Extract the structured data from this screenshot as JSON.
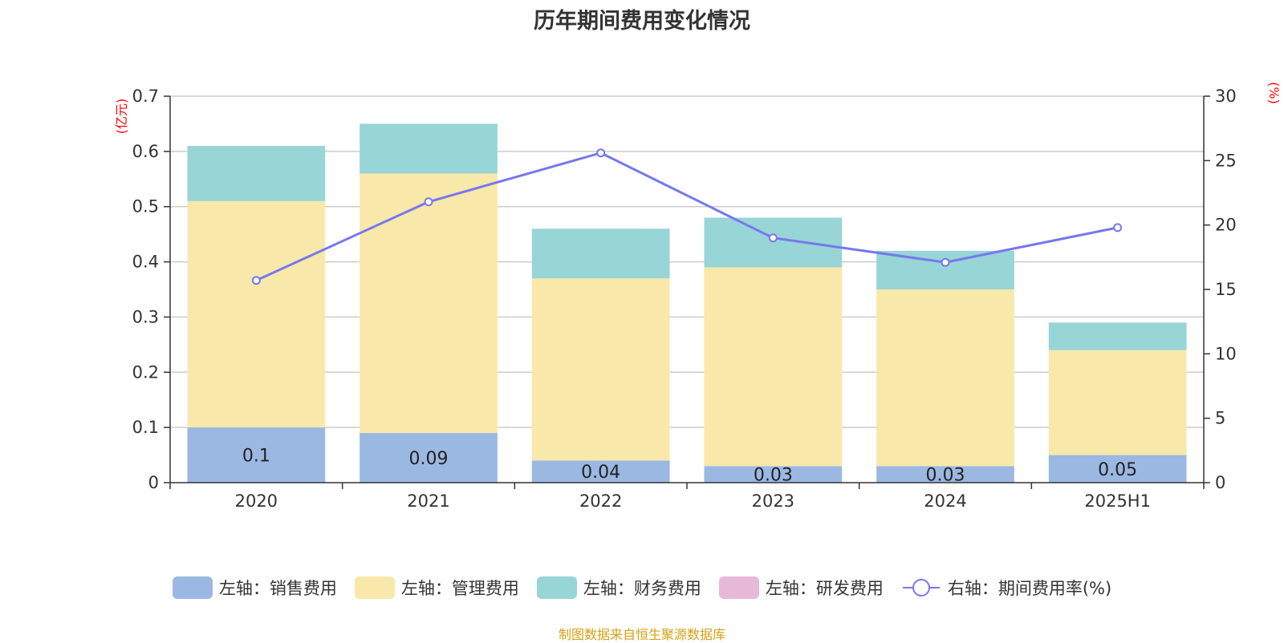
{
  "chart_data": {
    "type": "bar",
    "stacked": true,
    "title": "历年期间费用变化情况",
    "categories": [
      "2020",
      "2021",
      "2022",
      "2023",
      "2024",
      "2025H1"
    ],
    "left_axis": {
      "unit": "(亿元)",
      "ylim": [
        0,
        0.7
      ],
      "ticks": [
        "0",
        "0.1",
        "0.2",
        "0.3",
        "0.4",
        "0.5",
        "0.6",
        "0.7"
      ]
    },
    "right_axis": {
      "unit": "(%)",
      "ylim": [
        0,
        30
      ],
      "ticks": [
        "0",
        "5",
        "10",
        "15",
        "20",
        "25",
        "30"
      ]
    },
    "series": [
      {
        "name": "左轴：销售费用",
        "type": "bar",
        "color": "#9bb8e2",
        "values": [
          0.1,
          0.09,
          0.04,
          0.03,
          0.03,
          0.05
        ],
        "labels": [
          "0.1",
          "0.09",
          "0.04",
          "0.03",
          "0.03",
          "0.05"
        ]
      },
      {
        "name": "左轴：管理费用",
        "type": "bar",
        "color": "#f8e8aa",
        "values": [
          0.41,
          0.47,
          0.33,
          0.36,
          0.32,
          0.19
        ]
      },
      {
        "name": "左轴：财务费用",
        "type": "bar",
        "color": "#98d5d6",
        "values": [
          0.1,
          0.09,
          0.09,
          0.09,
          0.07,
          0.05
        ]
      },
      {
        "name": "左轴：研发费用",
        "type": "bar",
        "color": "#e8b8d8",
        "values": [
          0,
          0,
          0,
          0,
          0,
          0
        ]
      },
      {
        "name": "右轴：期间费用率(%)",
        "type": "line",
        "color": "#7777ee",
        "values": [
          15.7,
          21.8,
          25.6,
          19.0,
          17.1,
          19.8
        ]
      }
    ],
    "grid": true,
    "legend": "bottom"
  },
  "source_text": "制图数据来自恒生聚源数据库"
}
